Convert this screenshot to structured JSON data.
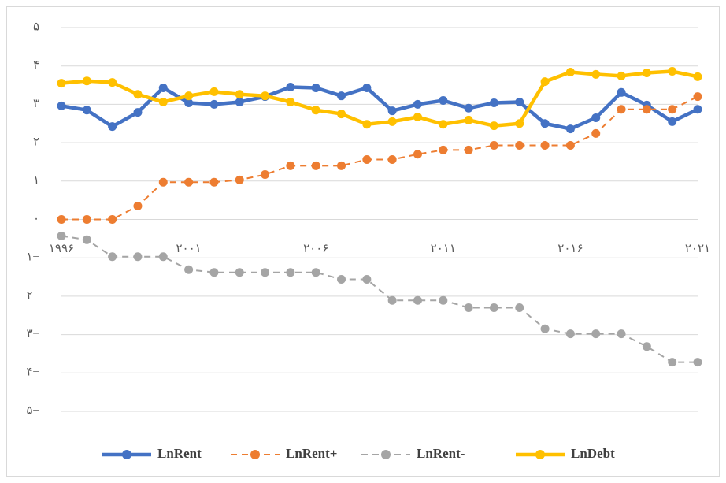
{
  "chart_data": {
    "type": "line",
    "categories": [
      "۱۹۹۶",
      null,
      null,
      null,
      null,
      "۲۰۰۱",
      null,
      null,
      null,
      null,
      "۲۰۰۶",
      null,
      null,
      null,
      null,
      "۲۰۱۱",
      null,
      null,
      null,
      null,
      "۲۰۱۶",
      null,
      null,
      null,
      null,
      "۲۰۲۱"
    ],
    "series": [
      {
        "name": "LnRent",
        "color": "#4472c4",
        "line_style": "solid",
        "values": [
          2.96,
          2.85,
          2.42,
          2.79,
          3.43,
          3.04,
          3.0,
          3.06,
          3.2,
          3.45,
          3.43,
          3.22,
          3.43,
          2.83,
          3.0,
          3.1,
          2.9,
          3.04,
          3.06,
          2.5,
          2.36,
          2.65,
          3.31,
          2.98,
          2.55,
          2.87
        ]
      },
      {
        "name": "LnRent+",
        "color": "#ed7d31",
        "line_style": "dashed",
        "values": [
          0,
          0,
          0,
          0.35,
          0.97,
          0.97,
          0.97,
          1.03,
          1.17,
          1.4,
          1.4,
          1.4,
          1.56,
          1.56,
          1.7,
          1.81,
          1.81,
          1.93,
          1.93,
          1.93,
          1.93,
          2.24,
          2.87,
          2.87,
          2.87,
          3.2
        ]
      },
      {
        "name": "LnRent-",
        "color": "#a5a5a5",
        "line_style": "dashed",
        "values": [
          -0.43,
          -0.53,
          -0.97,
          -0.97,
          -0.97,
          -1.31,
          -1.38,
          -1.38,
          -1.38,
          -1.38,
          -1.38,
          -1.56,
          -1.56,
          -2.11,
          -2.11,
          -2.11,
          -2.3,
          -2.3,
          -2.3,
          -2.85,
          -2.98,
          -2.98,
          -2.98,
          -3.31,
          -3.72,
          -3.72
        ]
      },
      {
        "name": "LnDebt",
        "color": "#ffc000",
        "line_style": "solid",
        "values": [
          3.55,
          3.61,
          3.57,
          3.26,
          3.06,
          3.22,
          3.33,
          3.26,
          3.22,
          3.06,
          2.85,
          2.75,
          2.48,
          2.55,
          2.67,
          2.48,
          2.59,
          2.44,
          2.5,
          3.59,
          3.84,
          3.78,
          3.74,
          3.82,
          3.86,
          3.72
        ]
      }
    ],
    "ylim": [
      -5,
      5
    ],
    "yticks": [
      {
        "value": -5,
        "label": "۵−"
      },
      {
        "value": -4,
        "label": "۴−"
      },
      {
        "value": -3,
        "label": "۳−"
      },
      {
        "value": -2,
        "label": "۲−"
      },
      {
        "value": -1,
        "label": "۱−"
      },
      {
        "value": 0,
        "label": "۰"
      },
      {
        "value": 1,
        "label": "۱"
      },
      {
        "value": 2,
        "label": "۲"
      },
      {
        "value": 3,
        "label": "۳"
      },
      {
        "value": 4,
        "label": "۴"
      },
      {
        "value": 5,
        "label": "۵"
      }
    ],
    "grid": true,
    "legend": "bottom"
  }
}
